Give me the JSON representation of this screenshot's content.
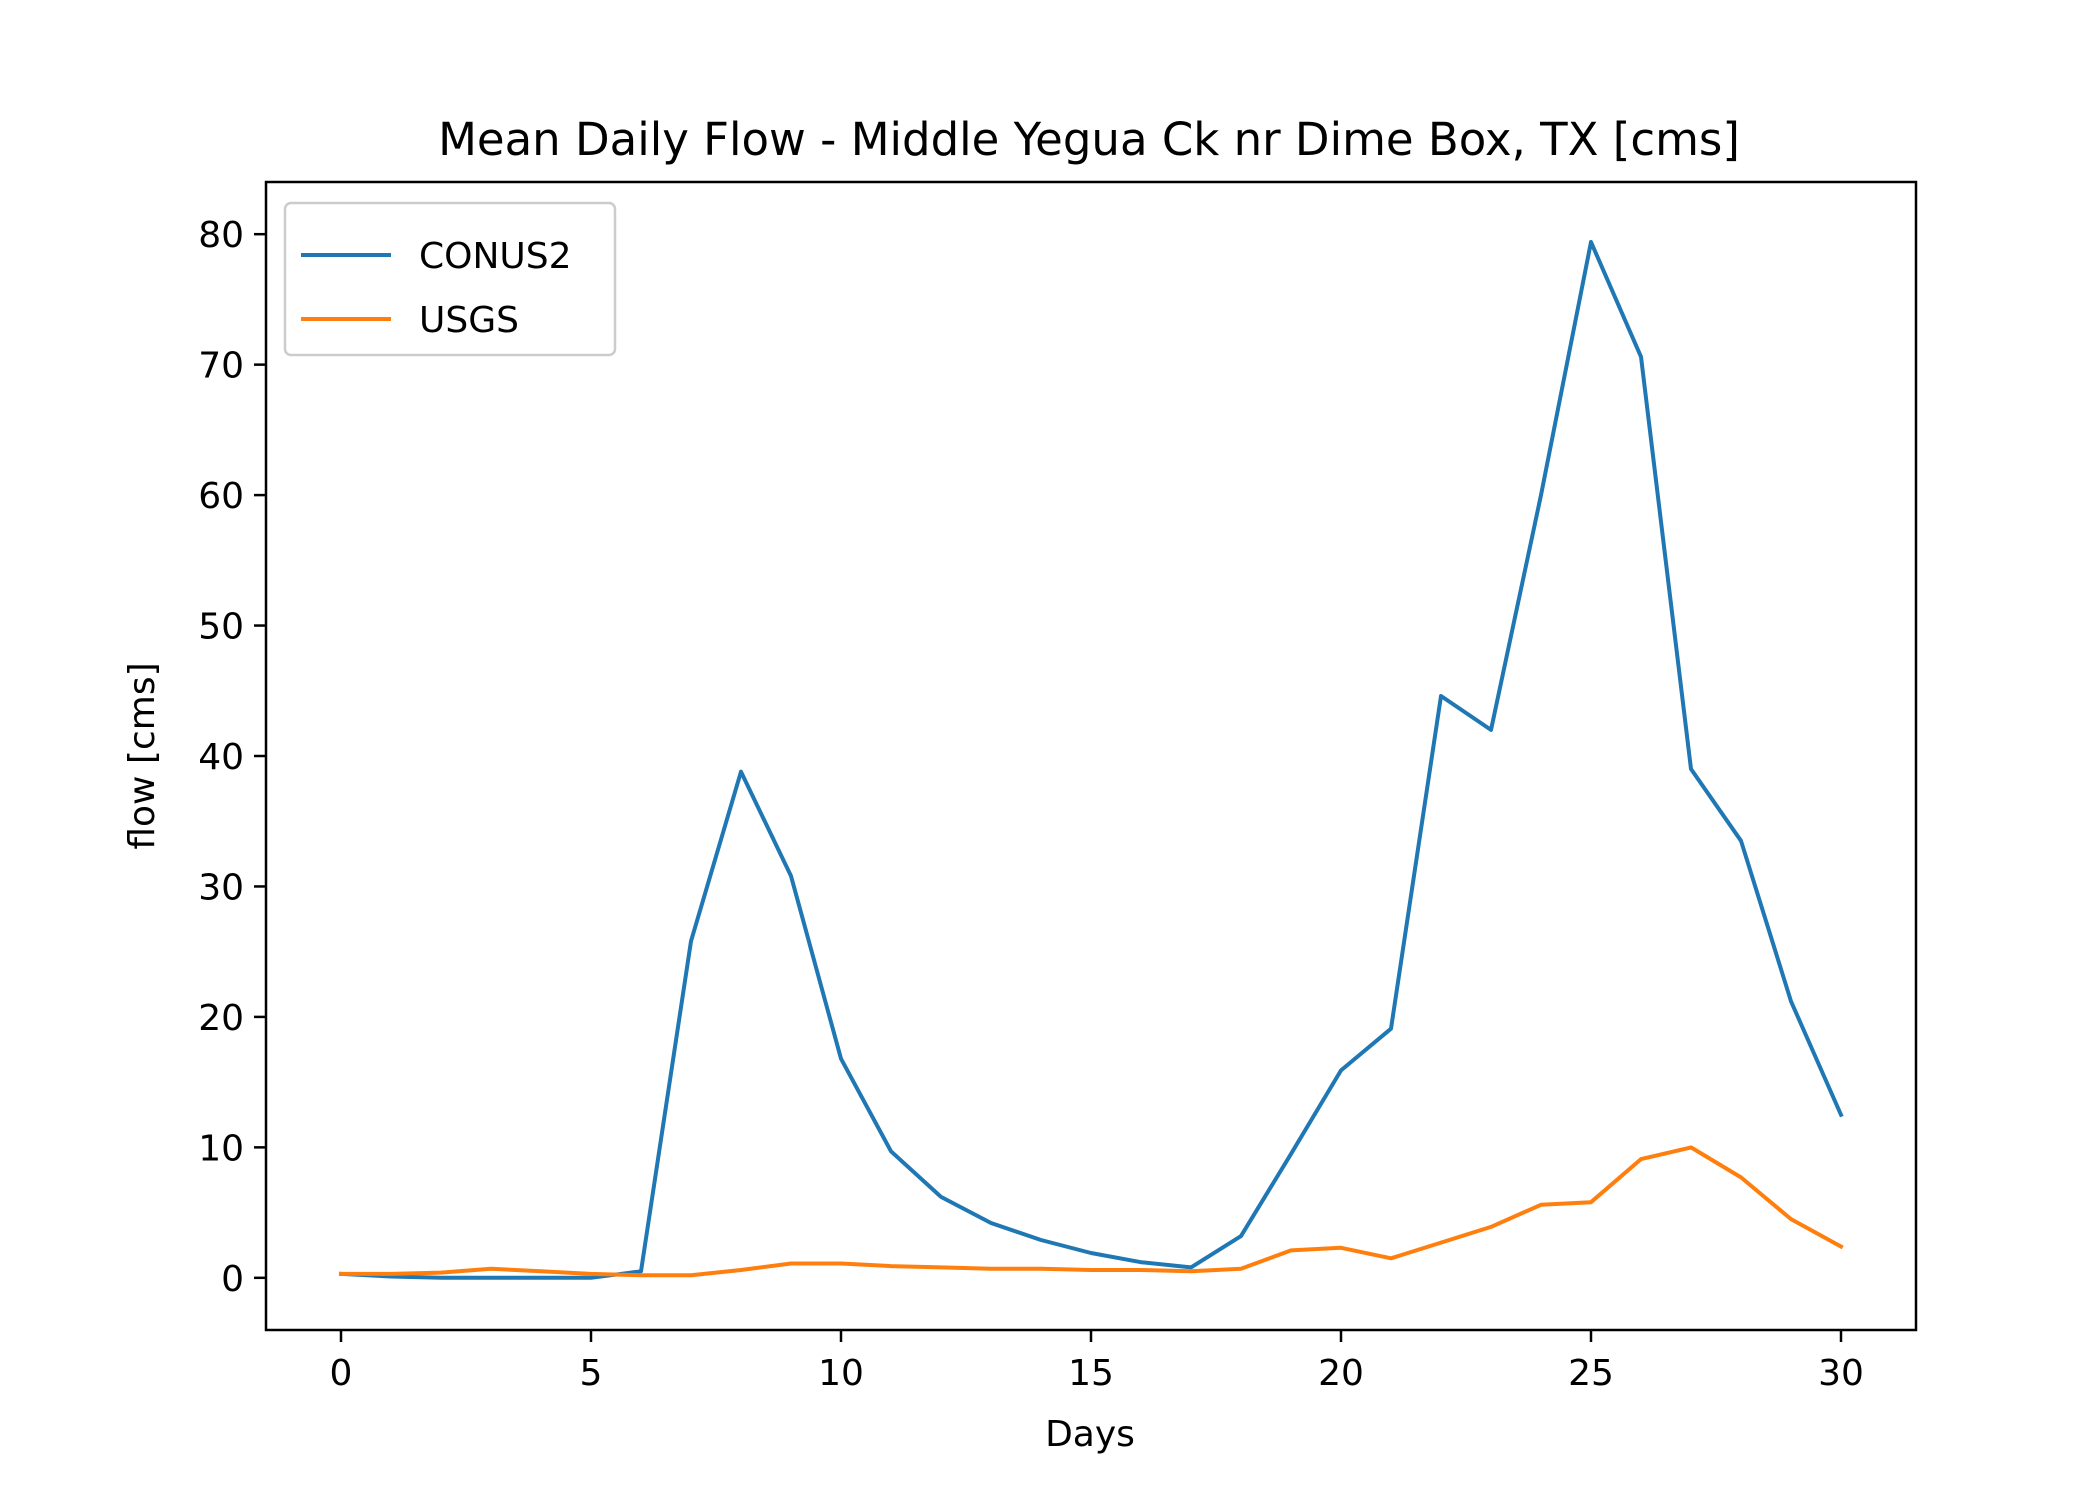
{
  "chart_data": {
    "type": "line",
    "title": "Mean Daily Flow - Middle Yegua Ck nr Dime Box, TX [cms]",
    "xlabel": "Days",
    "ylabel": "flow [cms]",
    "xlim": [
      -1.5,
      31.5
    ],
    "ylim": [
      -4,
      84
    ],
    "xticks": [
      0,
      5,
      10,
      15,
      20,
      25,
      30
    ],
    "yticks": [
      0,
      10,
      20,
      30,
      40,
      50,
      60,
      70,
      80
    ],
    "grid": false,
    "legend_position": "upper-left",
    "x": [
      0,
      1,
      2,
      3,
      4,
      5,
      6,
      7,
      8,
      9,
      10,
      11,
      12,
      13,
      14,
      15,
      16,
      17,
      18,
      19,
      20,
      21,
      22,
      23,
      24,
      25,
      26,
      27,
      28,
      29,
      30
    ],
    "series": [
      {
        "name": "CONUS2",
        "color": "#1f77b4",
        "values": [
          0.3,
          0.1,
          0,
          0,
          0,
          0,
          0.5,
          25.8,
          38.8,
          30.8,
          16.8,
          9.7,
          6.2,
          4.2,
          2.9,
          1.9,
          1.2,
          0.8,
          3.2,
          9.5,
          15.9,
          19.1,
          44.6,
          42,
          60,
          79.4,
          70.6,
          39,
          33.5,
          21.2,
          12.5
        ]
      },
      {
        "name": "USGS",
        "color": "#ff7f0e",
        "values": [
          0.3,
          0.3,
          0.4,
          0.7,
          0.5,
          0.3,
          0.2,
          0.2,
          0.6,
          1.1,
          1.1,
          0.9,
          0.8,
          0.7,
          0.7,
          0.6,
          0.6,
          0.5,
          0.7,
          2.1,
          2.3,
          1.5,
          2.7,
          3.9,
          5.6,
          5.8,
          9.1,
          10,
          7.7,
          4.5,
          2.4
        ]
      }
    ]
  }
}
